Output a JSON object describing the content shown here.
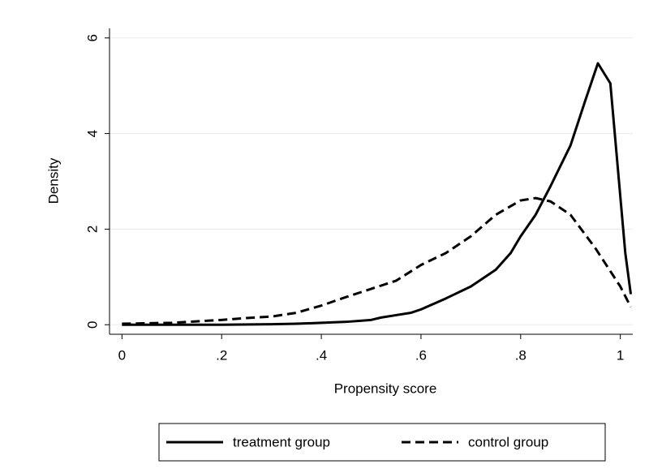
{
  "chart_data": {
    "type": "line",
    "x_label": "Propensity score",
    "y_label": "Density",
    "xlim": [
      -0.025,
      1.025
    ],
    "ylim": [
      -0.2,
      6.2
    ],
    "xticks": [
      0,
      {
        "value": 0.2,
        "label": ".2"
      },
      {
        "value": 0.4,
        "label": ".4"
      },
      {
        "value": 0.6,
        "label": ".6"
      },
      {
        "value": 0.8,
        "label": ".8"
      },
      1
    ],
    "yticks": [
      0,
      2,
      4,
      6
    ],
    "grid": true,
    "series": [
      {
        "name": "treatment group",
        "color": "#000000",
        "line_style": "solid",
        "x": [
          0,
          0.1,
          0.2,
          0.3,
          0.35,
          0.4,
          0.45,
          0.5,
          0.52,
          0.55,
          0.58,
          0.6,
          0.65,
          0.7,
          0.75,
          0.78,
          0.8,
          0.83,
          0.86,
          0.9,
          0.93,
          0.955,
          0.98,
          1.01,
          1.021
        ],
        "values": [
          0,
          0,
          0,
          0.01,
          0.02,
          0.04,
          0.06,
          0.1,
          0.15,
          0.2,
          0.25,
          0.32,
          0.55,
          0.8,
          1.15,
          1.5,
          1.85,
          2.3,
          2.9,
          3.75,
          4.7,
          5.47,
          5.05,
          1.5,
          0.64
        ]
      },
      {
        "name": "control group",
        "color": "#000000",
        "line_style": "dashed",
        "x": [
          0,
          0.1,
          0.2,
          0.25,
          0.3,
          0.35,
          0.4,
          0.45,
          0.5,
          0.55,
          0.6,
          0.65,
          0.7,
          0.75,
          0.8,
          0.83,
          0.86,
          0.9,
          0.95,
          1.0,
          1.021
        ],
        "values": [
          0.02,
          0.04,
          0.1,
          0.14,
          0.17,
          0.25,
          0.4,
          0.58,
          0.75,
          0.92,
          1.25,
          1.5,
          1.85,
          2.3,
          2.6,
          2.65,
          2.58,
          2.3,
          1.6,
          0.8,
          0.37
        ]
      }
    ]
  }
}
